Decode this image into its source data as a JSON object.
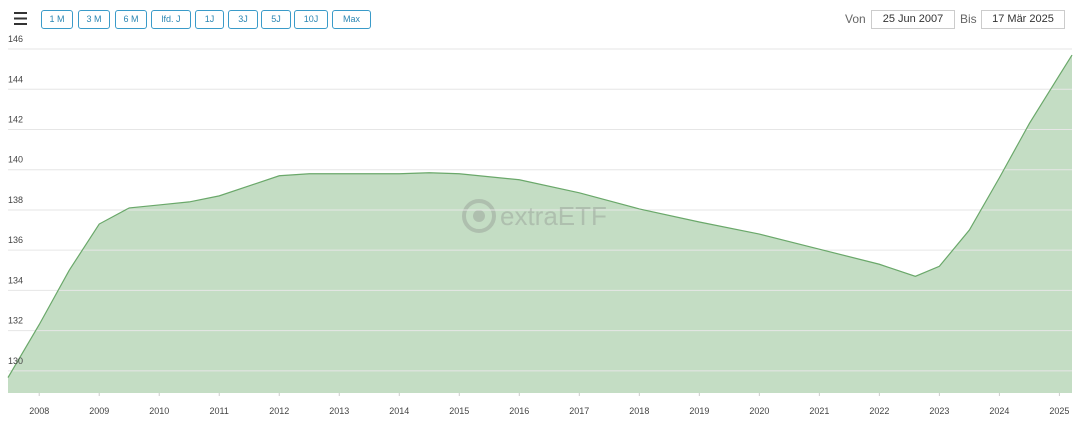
{
  "toolbar": {
    "buttons": [
      "1 M",
      "3 M",
      "6 M",
      "lfd. J",
      "1J",
      "3J",
      "5J",
      "10J",
      "Max"
    ],
    "from_label": "Von",
    "from_date": "25 Jun 2007",
    "to_label": "Bis",
    "to_date": "17 Mär 2025"
  },
  "watermark": "extraETF",
  "chart_data": {
    "type": "area",
    "color": "#c4ddc4",
    "line_color": "#6aa86a",
    "grid": true,
    "x": [
      2007.48,
      2008.0,
      2008.5,
      2009.0,
      2009.5,
      2010.0,
      2010.5,
      2011.0,
      2011.5,
      2012.0,
      2012.5,
      2013.0,
      2014.0,
      2014.5,
      2015.0,
      2016.0,
      2017.0,
      2018.0,
      2019.0,
      2020.0,
      2021.0,
      2022.0,
      2022.6,
      2023.0,
      2023.5,
      2024.0,
      2024.5,
      2025.0,
      2025.21
    ],
    "values": [
      129.67,
      132.3,
      135.0,
      137.3,
      138.1,
      138.25,
      138.4,
      138.7,
      139.2,
      139.7,
      139.8,
      139.8,
      139.8,
      139.85,
      139.8,
      139.5,
      138.85,
      138.05,
      137.4,
      136.8,
      136.05,
      135.3,
      134.7,
      135.2,
      137.0,
      139.6,
      142.3,
      144.7,
      145.7
    ],
    "xlim": [
      2007.48,
      2025.21
    ],
    "ylim": [
      128.9,
      146.2
    ],
    "xticks": [
      2008,
      2009,
      2010,
      2011,
      2012,
      2013,
      2014,
      2015,
      2016,
      2017,
      2018,
      2019,
      2020,
      2021,
      2022,
      2023,
      2024,
      2025
    ],
    "yticks": [
      130,
      132,
      134,
      136,
      138,
      140,
      142,
      144,
      146
    ]
  }
}
